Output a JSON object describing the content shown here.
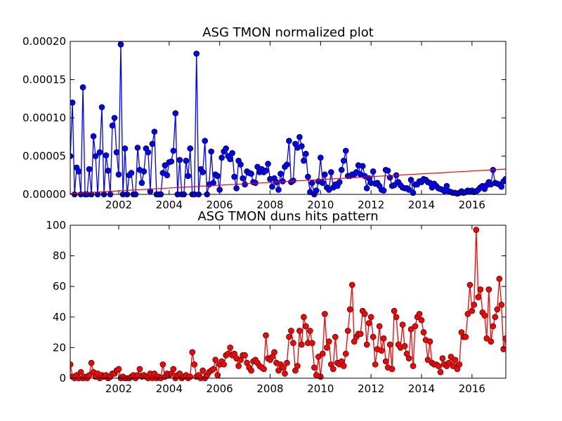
{
  "chart_data": [
    {
      "type": "line",
      "title": "ASG TMON normalized plot",
      "xlim": [
        2000.08,
        2017.34
      ],
      "xticks": [
        2002,
        2004,
        2006,
        2008,
        2010,
        2012,
        2014,
        2016
      ],
      "ylim": [
        0,
        0.0002
      ],
      "yticks": [
        {
          "value": 0,
          "label": "0.00000"
        },
        {
          "value": 5e-05,
          "label": "0.00005"
        },
        {
          "value": 0.0001,
          "label": "0.00010"
        },
        {
          "value": 0.00015,
          "label": "0.00015"
        },
        {
          "value": 0.0002,
          "label": "0.00020"
        }
      ],
      "x": [
        2000.083,
        2000.167,
        2000.25,
        2000.333,
        2000.417,
        2000.5,
        2000.583,
        2000.667,
        2000.75,
        2000.833,
        2000.917,
        2001.0,
        2001.083,
        2001.167,
        2001.25,
        2001.333,
        2001.417,
        2001.5,
        2001.583,
        2001.667,
        2001.75,
        2001.833,
        2001.917,
        2002.0,
        2002.083,
        2002.167,
        2002.25,
        2002.333,
        2002.417,
        2002.5,
        2002.583,
        2002.667,
        2002.75,
        2002.833,
        2002.917,
        2003.0,
        2003.083,
        2003.167,
        2003.25,
        2003.333,
        2003.417,
        2003.5,
        2003.583,
        2003.667,
        2003.75,
        2003.833,
        2003.917,
        2004.0,
        2004.083,
        2004.167,
        2004.25,
        2004.333,
        2004.417,
        2004.5,
        2004.583,
        2004.667,
        2004.75,
        2004.833,
        2004.917,
        2005.0,
        2005.083,
        2005.167,
        2005.25,
        2005.333,
        2005.417,
        2005.5,
        2005.583,
        2005.667,
        2005.75,
        2005.833,
        2005.917,
        2006.0,
        2006.083,
        2006.167,
        2006.25,
        2006.333,
        2006.417,
        2006.5,
        2006.583,
        2006.667,
        2006.75,
        2006.833,
        2006.917,
        2007.0,
        2007.083,
        2007.167,
        2007.25,
        2007.333,
        2007.417,
        2007.5,
        2007.583,
        2007.667,
        2007.75,
        2007.833,
        2007.917,
        2008.0,
        2008.083,
        2008.167,
        2008.25,
        2008.333,
        2008.417,
        2008.5,
        2008.583,
        2008.667,
        2008.75,
        2008.833,
        2008.917,
        2009.0,
        2009.083,
        2009.167,
        2009.25,
        2009.333,
        2009.417,
        2009.5,
        2009.583,
        2009.667,
        2009.75,
        2009.833,
        2009.917,
        2010.0,
        2010.083,
        2010.167,
        2010.25,
        2010.333,
        2010.417,
        2010.5,
        2010.583,
        2010.667,
        2010.75,
        2010.833,
        2010.917,
        2011.0,
        2011.083,
        2011.167,
        2011.25,
        2011.333,
        2011.417,
        2011.5,
        2011.583,
        2011.667,
        2011.75,
        2011.833,
        2011.917,
        2012.0,
        2012.083,
        2012.167,
        2012.25,
        2012.333,
        2012.417,
        2012.5,
        2012.583,
        2012.667,
        2012.75,
        2012.833,
        2012.917,
        2013.0,
        2013.083,
        2013.167,
        2013.25,
        2013.333,
        2013.417,
        2013.5,
        2013.583,
        2013.667,
        2013.75,
        2013.833,
        2013.917,
        2014.0,
        2014.083,
        2014.167,
        2014.25,
        2014.333,
        2014.417,
        2014.5,
        2014.583,
        2014.667,
        2014.75,
        2014.833,
        2014.917,
        2015.0,
        2015.083,
        2015.167,
        2015.25,
        2015.333,
        2015.417,
        2015.5,
        2015.583,
        2015.667,
        2015.75,
        2015.833,
        2015.917,
        2016.0,
        2016.083,
        2016.167,
        2016.25,
        2016.333,
        2016.417,
        2016.5,
        2016.583,
        2016.667,
        2016.75,
        2016.833,
        2016.917,
        2017.0,
        2017.083,
        2017.167,
        2017.25,
        2017.333
      ],
      "series": [
        {
          "color": "#0000ff",
          "values": [
            5e-05,
            0.00012,
            0,
            3.5e-05,
            3e-05,
            0,
            0.00014,
            0,
            0,
            3.3e-05,
            0,
            7.6e-05,
            5e-05,
            0,
            5.5e-05,
            0.000114,
            0,
            5.1e-05,
            3.1e-05,
            0,
            9e-05,
            0.0001,
            5.5e-05,
            2.6e-05,
            0.000196,
            0,
            6e-05,
            0,
            2.5e-05,
            2.8e-05,
            0,
            0,
            6.1e-05,
            3.2e-05,
            1.5e-05,
            3e-05,
            6e-05,
            5.5e-05,
            4e-06,
            6.6e-05,
            8.2e-05,
            0,
            0,
            0,
            2.8e-05,
            3.8e-05,
            2.5e-05,
            4.2e-05,
            4.3e-05,
            5.7e-05,
            0.000106,
            0,
            4.5e-05,
            0,
            0,
            4.4e-05,
            2.4e-05,
            6e-05,
            0,
            0,
            0.000184,
            0,
            3.3e-05,
            2.9e-05,
            7e-05,
            0,
            1.3e-05,
            5.6e-05,
            1.5e-05,
            2.6e-05,
            2.4e-05,
            6e-06,
            4.8e-05,
            5.6e-05,
            6e-05,
            5e-05,
            4.6e-05,
            5.4e-05,
            2.3e-05,
            8e-06,
            4.4e-05,
            3.9e-05,
            2.1e-05,
            1.3e-05,
            3e-05,
            2.8e-05,
            2.7e-05,
            1.6e-05,
            1.5e-05,
            3.6e-05,
            2.9e-05,
            3.3e-05,
            2.9e-05,
            3.1e-05,
            4e-05,
            2e-05,
            1e-05,
            2.1e-05,
            1.6e-05,
            6e-06,
            2.7e-05,
            1.7e-05,
            3.6e-05,
            3.9e-05,
            7e-05,
            1.6e-05,
            1.8e-05,
            6.6e-05,
            6.1e-05,
            7.5e-05,
            6.3e-05,
            4.4e-05,
            5.3e-05,
            2.3e-05,
            3e-06,
            1.5e-05,
            0,
            5e-06,
            1.7e-05,
            4.8e-05,
            1.5e-05,
            2.6e-05,
            9e-06,
            6e-06,
            2.9e-05,
            9e-06,
            1.3e-05,
            1.1e-05,
            1.6e-05,
            3.2e-05,
            4.4e-05,
            5.7e-05,
            2.4e-05,
            2.4e-05,
            2.6e-05,
            2.6e-05,
            2.9e-05,
            3.8e-05,
            2.6e-05,
            3.7e-05,
            2.4e-05,
            8e-06,
            2.1e-05,
            1.5e-05,
            3e-05,
            1.4e-05,
            1.5e-05,
            1.1e-05,
            6e-06,
            5e-06,
            3.2e-05,
            3.1e-05,
            2.2e-05,
            1.1e-05,
            1.2e-05,
            2.5e-05,
            1.6e-05,
            1.2e-05,
            9e-06,
            8e-06,
            8e-06,
            6e-06,
            1.9e-05,
            2e-06,
            1.3e-05,
            1.3e-05,
            1.7e-05,
            1.6e-05,
            2e-05,
            1.9e-05,
            1.6e-05,
            1.5e-05,
            9e-06,
            1.4e-05,
            1.1e-05,
            8e-06,
            7e-06,
            6e-06,
            4e-06,
            1.1e-05,
            4e-06,
            3e-06,
            2e-06,
            2e-06,
            1e-06,
            2e-06,
            4e-06,
            2e-06,
            3e-06,
            5e-06,
            4e-06,
            5e-06,
            3e-06,
            4e-06,
            6e-06,
            9e-06,
            1.1e-05,
            7e-06,
            1.2e-05,
            1.6e-05,
            1.3e-05,
            3.2e-05,
            1.5e-05,
            1.4e-05,
            1.3e-05,
            1e-05,
            1.7e-05,
            2e-05
          ]
        }
      ],
      "trend": {
        "color": "#ff0000",
        "x": [
          2000.08,
          2017.34
        ],
        "values": [
          1e-06,
          3.3e-05
        ]
      }
    },
    {
      "type": "line",
      "title": "ASG TMON duns hits pattern",
      "xlim": [
        2000.08,
        2017.34
      ],
      "xticks": [
        2002,
        2004,
        2006,
        2008,
        2010,
        2012,
        2014,
        2016
      ],
      "ylim": [
        0,
        100
      ],
      "yticks": [
        0,
        20,
        40,
        60,
        80,
        100
      ],
      "x": [
        2000.083,
        2000.167,
        2000.25,
        2000.333,
        2000.417,
        2000.5,
        2000.583,
        2000.667,
        2000.75,
        2000.833,
        2000.917,
        2001.0,
        2001.083,
        2001.167,
        2001.25,
        2001.333,
        2001.417,
        2001.5,
        2001.583,
        2001.667,
        2001.75,
        2001.833,
        2001.917,
        2002.0,
        2002.083,
        2002.167,
        2002.25,
        2002.333,
        2002.417,
        2002.5,
        2002.583,
        2002.667,
        2002.75,
        2002.833,
        2002.917,
        2003.0,
        2003.083,
        2003.167,
        2003.25,
        2003.333,
        2003.417,
        2003.5,
        2003.583,
        2003.667,
        2003.75,
        2003.833,
        2003.917,
        2004.0,
        2004.083,
        2004.167,
        2004.25,
        2004.333,
        2004.417,
        2004.5,
        2004.583,
        2004.667,
        2004.75,
        2004.833,
        2004.917,
        2005.0,
        2005.083,
        2005.167,
        2005.25,
        2005.333,
        2005.417,
        2005.5,
        2005.583,
        2005.667,
        2005.75,
        2005.833,
        2005.917,
        2006.0,
        2006.083,
        2006.167,
        2006.25,
        2006.333,
        2006.417,
        2006.5,
        2006.583,
        2006.667,
        2006.75,
        2006.833,
        2006.917,
        2007.0,
        2007.083,
        2007.167,
        2007.25,
        2007.333,
        2007.417,
        2007.5,
        2007.583,
        2007.667,
        2007.75,
        2007.833,
        2007.917,
        2008.0,
        2008.083,
        2008.167,
        2008.25,
        2008.333,
        2008.417,
        2008.5,
        2008.583,
        2008.667,
        2008.75,
        2008.833,
        2008.917,
        2009.0,
        2009.083,
        2009.167,
        2009.25,
        2009.333,
        2009.417,
        2009.5,
        2009.583,
        2009.667,
        2009.75,
        2009.833,
        2009.917,
        2010.0,
        2010.083,
        2010.167,
        2010.25,
        2010.333,
        2010.417,
        2010.5,
        2010.583,
        2010.667,
        2010.75,
        2010.833,
        2010.917,
        2011.0,
        2011.083,
        2011.167,
        2011.25,
        2011.333,
        2011.417,
        2011.5,
        2011.583,
        2011.667,
        2011.75,
        2011.833,
        2011.917,
        2012.0,
        2012.083,
        2012.167,
        2012.25,
        2012.333,
        2012.417,
        2012.5,
        2012.583,
        2012.667,
        2012.75,
        2012.833,
        2012.917,
        2013.0,
        2013.083,
        2013.167,
        2013.25,
        2013.333,
        2013.417,
        2013.5,
        2013.583,
        2013.667,
        2013.75,
        2013.833,
        2013.917,
        2014.0,
        2014.083,
        2014.167,
        2014.25,
        2014.333,
        2014.417,
        2014.5,
        2014.583,
        2014.667,
        2014.75,
        2014.833,
        2014.917,
        2015.0,
        2015.083,
        2015.167,
        2015.25,
        2015.333,
        2015.417,
        2015.5,
        2015.583,
        2015.667,
        2015.75,
        2015.833,
        2015.917,
        2016.0,
        2016.083,
        2016.167,
        2016.25,
        2016.333,
        2016.417,
        2016.5,
        2016.583,
        2016.667,
        2016.75,
        2016.833,
        2016.917,
        2017.0,
        2017.083,
        2017.167,
        2017.25,
        2017.333
      ],
      "series": [
        {
          "color": "#ff0000",
          "values": [
            9,
            1,
            0,
            2,
            0,
            4,
            0,
            1,
            0,
            2,
            10,
            4,
            1,
            3,
            0,
            2,
            1,
            2,
            0,
            1,
            3,
            3,
            5,
            6,
            0,
            1,
            0,
            0,
            0,
            1,
            2,
            0,
            2,
            6,
            1,
            2,
            1,
            0,
            3,
            0,
            3,
            0,
            1,
            0,
            9,
            1,
            3,
            2,
            3,
            6,
            0,
            2,
            3,
            0,
            1,
            2,
            0,
            1,
            17,
            9,
            1,
            2,
            0,
            5,
            0,
            2,
            4,
            5,
            6,
            12,
            2,
            9,
            11,
            9,
            15,
            16,
            20,
            15,
            16,
            13,
            8,
            12,
            15,
            15,
            10,
            7,
            5,
            11,
            12,
            10,
            8,
            7,
            6,
            28,
            13,
            12,
            14,
            17,
            10,
            5,
            9,
            7,
            3,
            10,
            27,
            31,
            23,
            5,
            8,
            31,
            22,
            40,
            34,
            23,
            31,
            23,
            7,
            2,
            14,
            1,
            16,
            42,
            20,
            24,
            9,
            6,
            27,
            10,
            9,
            11,
            8,
            16,
            31,
            45,
            61,
            24,
            27,
            29,
            29,
            44,
            42,
            22,
            36,
            40,
            27,
            9,
            19,
            34,
            18,
            26,
            11,
            7,
            22,
            6,
            44,
            40,
            22,
            20,
            35,
            21,
            16,
            13,
            32,
            8,
            34,
            40,
            42,
            38,
            30,
            25,
            12,
            24,
            10,
            9,
            9,
            8,
            4,
            13,
            9,
            8,
            10,
            14,
            8,
            12,
            6,
            9,
            30,
            27,
            27,
            42,
            61,
            44,
            48,
            97,
            53,
            58,
            43,
            41,
            26,
            58,
            24,
            34,
            40,
            45,
            65,
            48,
            19,
            26
          ]
        }
      ]
    }
  ]
}
